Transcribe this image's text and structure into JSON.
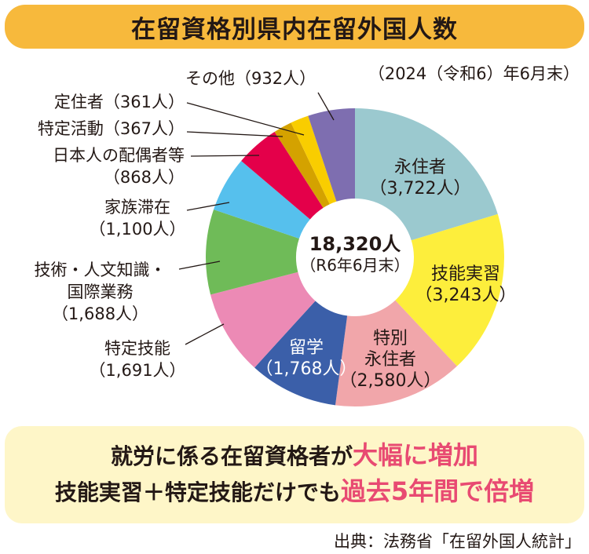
{
  "title": "在留資格別県内在留外国人数",
  "date_note": "（2024（令和6）年6月末）",
  "center": {
    "total": "18,320人",
    "sub": "（R6年6月末）"
  },
  "chart_data": {
    "type": "pie",
    "variant": "donut",
    "title": "在留資格別県内在留外国人数",
    "unit": "人",
    "total": 18320,
    "slices": [
      {
        "label": "永住者",
        "value": 3722,
        "value_text": "（3,722人）",
        "color": "#9bc9cf"
      },
      {
        "label": "技能実習",
        "value": 3243,
        "value_text": "（3,243人）",
        "color": "#fdee3c"
      },
      {
        "label": "特別永住者",
        "value": 2580,
        "value_text": "（2,580人）",
        "color": "#f1a6aa"
      },
      {
        "label": "留学",
        "value": 1768,
        "value_text": "（1,768人）",
        "color": "#3b5fa9"
      },
      {
        "label": "特定技能",
        "value": 1691,
        "value_text": "（1,691人）",
        "color": "#ec8ab5"
      },
      {
        "label": "技術・人文知識・国際業務",
        "value": 1688,
        "value_text": "（1,688人）",
        "color": "#6fbb58"
      },
      {
        "label": "家族滞在",
        "value": 1100,
        "value_text": "（1,100人）",
        "color": "#56c0ed"
      },
      {
        "label": "日本人の配偶者等",
        "value": 868,
        "value_text": "（868人）",
        "color": "#e4004a"
      },
      {
        "label": "特定活動",
        "value": 367,
        "value_text": "（367人）",
        "color": "#d4a200"
      },
      {
        "label": "定住者",
        "value": 361,
        "value_text": "（361人）",
        "color": "#f9cd00"
      },
      {
        "label": "その他",
        "value": 932,
        "value_text": "（932人）",
        "color": "#7e6eb0"
      }
    ]
  },
  "labels": {
    "eijusha": [
      "永住者",
      "（3,722人）"
    ],
    "ginou_jisshu": [
      "技能実習",
      "（3,243人）"
    ],
    "tokubetsu": [
      "特別",
      "永住者",
      "（2,580人）"
    ],
    "ryugaku": [
      "留学",
      "（1,768人）"
    ],
    "tokutei_ginou": [
      "特定技能",
      "（1,691人）"
    ],
    "gijutsu": [
      "技術・人文知識・",
      "国際業務",
      "（1,688人）"
    ],
    "kazoku": [
      "家族滞在",
      "（1,100人）"
    ],
    "haigusha": [
      "日本人の配偶者等",
      "（868人）"
    ],
    "tokutei_katsudo": "特定活動（367人）",
    "teijusha": "定住者（361人）",
    "sonota": "その他（932人）"
  },
  "summary": {
    "line1_a": "就労に係る在留資格者が",
    "line1_b": "大幅に増加",
    "line2_a": "技能実習＋特定技能だけでも",
    "line2_b": "過去5年間で倍増"
  },
  "source": "出典：法務省「在留外国人統計」"
}
